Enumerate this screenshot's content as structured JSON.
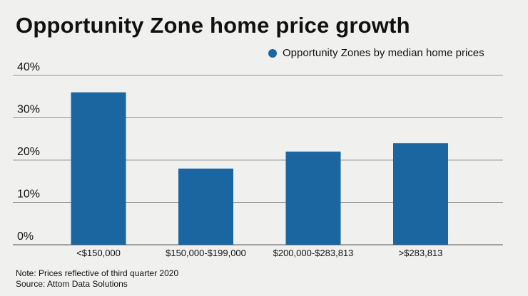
{
  "chart_data": {
    "type": "bar",
    "title": "Opportunity Zone home price growth",
    "legend": "Opportunity Zones by median home prices",
    "legend_position": "top-right",
    "categories": [
      "<$150,000",
      "$150,000-$199,000",
      "$200,000-$283,813",
      ">$283,813"
    ],
    "values": [
      36,
      18,
      22,
      24
    ],
    "yticks": [
      "0%",
      "10%",
      "20%",
      "30%",
      "40%"
    ],
    "ylim": [
      0,
      40
    ],
    "grid": true,
    "xlabel": "",
    "ylabel": "",
    "color": "#1b65a0"
  },
  "notes": [
    "Note: Prices reflective of third quarter 2020",
    "Source: Attom Data Solutions"
  ]
}
